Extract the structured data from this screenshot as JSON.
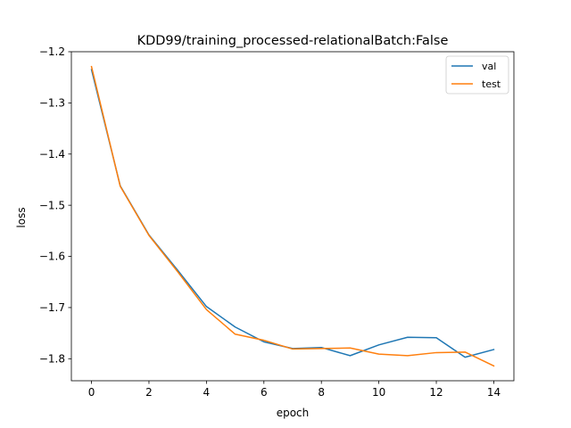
{
  "chart_data": {
    "type": "line",
    "title": "KDD99/training_processed-relationalBatch:False",
    "xlabel": "epoch",
    "ylabel": "loss",
    "xlim": [
      -0.7,
      14.7
    ],
    "ylim": [
      -1.843,
      -1.2
    ],
    "xticks": [
      0,
      2,
      4,
      6,
      8,
      10,
      12,
      14
    ],
    "xtick_labels": [
      "0",
      "2",
      "4",
      "6",
      "8",
      "10",
      "12",
      "14"
    ],
    "yticks": [
      -1.2,
      -1.3,
      -1.4,
      -1.5,
      -1.6,
      -1.7,
      -1.8
    ],
    "ytick_labels": [
      "−1.2",
      "−1.3",
      "−1.4",
      "−1.5",
      "−1.6",
      "−1.7",
      "−1.8"
    ],
    "grid": false,
    "legend_position": "top-right",
    "x": [
      0,
      1,
      2,
      3,
      4,
      5,
      6,
      7,
      8,
      9,
      10,
      11,
      12,
      13,
      14
    ],
    "series": [
      {
        "name": "val",
        "color": "#1f77b4",
        "values": [
          -1.235,
          -1.462,
          -1.558,
          -1.627,
          -1.698,
          -1.738,
          -1.767,
          -1.78,
          -1.778,
          -1.794,
          -1.773,
          -1.758,
          -1.759,
          -1.797,
          -1.782
        ]
      },
      {
        "name": "test",
        "color": "#ff7f0e",
        "values": [
          -1.229,
          -1.463,
          -1.559,
          -1.63,
          -1.704,
          -1.752,
          -1.764,
          -1.781,
          -1.78,
          -1.779,
          -1.791,
          -1.794,
          -1.788,
          -1.787,
          -1.814
        ]
      }
    ]
  }
}
